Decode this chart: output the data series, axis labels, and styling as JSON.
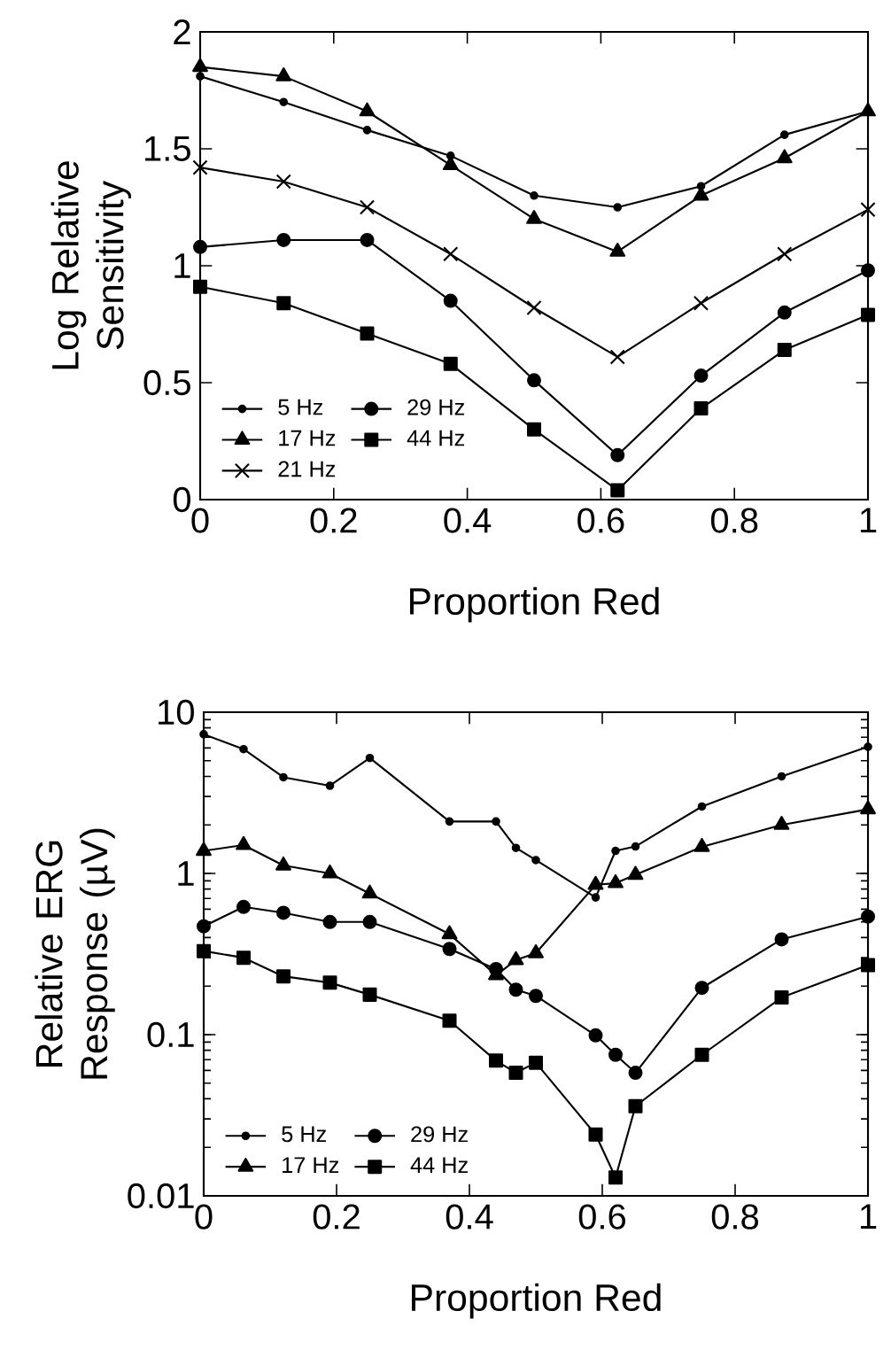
{
  "chart_data": [
    {
      "type": "line",
      "xlabel": "Proportion Red",
      "ylabel": "Log Relative Sensitivity",
      "x": [
        0,
        0.125,
        0.25,
        0.375,
        0.5,
        0.625,
        0.75,
        0.875,
        1
      ],
      "xlim": [
        0,
        1
      ],
      "xticks": [
        0,
        0.2,
        0.4,
        0.6,
        0.8,
        1
      ],
      "ylim": [
        0,
        2
      ],
      "yticks": [
        0,
        0.5,
        1,
        1.5,
        2
      ],
      "legend": "bottom left",
      "series": [
        {
          "name": "5 Hz",
          "color": "#000000",
          "marker": "circle",
          "values": [
            1.81,
            1.7,
            1.58,
            1.47,
            1.3,
            1.25,
            1.34,
            1.56,
            1.66
          ]
        },
        {
          "name": "29 Hz",
          "color": "#000000",
          "marker": "circle",
          "values": [
            1.08,
            1.11,
            1.11,
            0.85,
            0.51,
            0.19,
            0.53,
            0.8,
            0.98
          ]
        },
        {
          "name": "17 Hz",
          "color": "#000000",
          "marker": "triangle",
          "values": [
            1.85,
            1.81,
            1.66,
            1.43,
            1.2,
            1.06,
            1.3,
            1.46,
            1.66
          ]
        },
        {
          "name": "44 Hz",
          "color": "#000000",
          "marker": "square",
          "values": [
            0.91,
            0.84,
            0.71,
            0.58,
            0.3,
            0.04,
            0.39,
            0.64,
            0.79
          ]
        },
        {
          "name": "21 Hz",
          "color": "#000000",
          "marker": "cross",
          "values": [
            1.42,
            1.36,
            1.25,
            1.05,
            0.82,
            0.61,
            0.84,
            1.05,
            1.24
          ]
        }
      ]
    },
    {
      "type": "line",
      "xlabel": "Proportion Red",
      "ylabel": "Relative ERG Response (µV)",
      "log": "y",
      "x": [
        0,
        0.06,
        0.12,
        0.19,
        0.25,
        0.37,
        0.44,
        0.47,
        0.5,
        0.59,
        0.62,
        0.65,
        0.75,
        0.87,
        1
      ],
      "xlim": [
        0,
        1
      ],
      "xticks": [
        0,
        0.2,
        0.4,
        0.6,
        0.8,
        1
      ],
      "ylim": [
        0.01,
        10
      ],
      "yticks": [
        0.01,
        0.1,
        1,
        10
      ],
      "legend": "bottom left",
      "series": [
        {
          "name": "5 Hz",
          "color": "#000000",
          "marker": "circle",
          "values": [
            7.3,
            5.9,
            3.95,
            3.5,
            5.2,
            2.1,
            2.1,
            1.44,
            1.21,
            0.71,
            1.38,
            1.47,
            2.6,
            4.0,
            6.1
          ]
        },
        {
          "name": "29 Hz",
          "color": "#000000",
          "marker": "circle",
          "values": [
            0.47,
            0.62,
            0.57,
            0.5,
            0.5,
            0.34,
            0.255,
            0.19,
            0.174,
            0.099,
            0.075,
            0.058,
            0.195,
            0.39,
            0.54
          ]
        },
        {
          "name": "17 Hz",
          "color": "#000000",
          "marker": "triangle",
          "values": [
            1.38,
            1.5,
            1.12,
            1.0,
            0.75,
            0.42,
            0.234,
            0.29,
            0.32,
            0.85,
            0.87,
            0.98,
            1.46,
            2.0,
            2.5
          ]
        },
        {
          "name": "44 Hz",
          "color": "#000000",
          "marker": "square",
          "values": [
            0.33,
            0.3,
            0.23,
            0.21,
            0.177,
            0.122,
            0.069,
            0.058,
            0.067,
            0.024,
            0.013,
            0.036,
            0.075,
            0.17,
            0.27
          ]
        }
      ]
    }
  ]
}
